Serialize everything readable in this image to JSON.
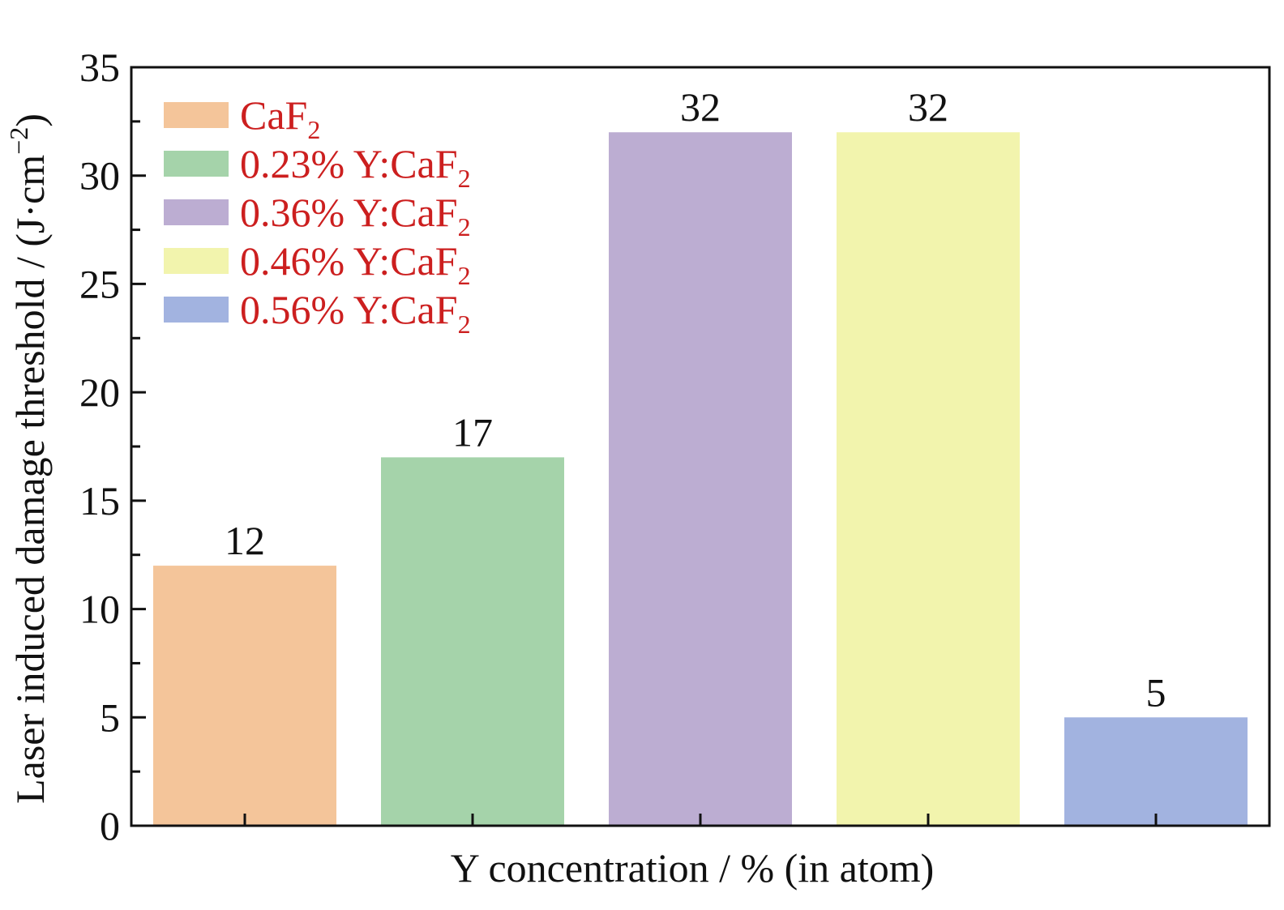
{
  "chart_data": {
    "type": "bar",
    "title": "",
    "xlabel": "Y concentration / % (in atom)",
    "ylabel": "Laser induced damage threshold / (J·cm",
    "ylabel_superscript": "−2",
    "ylabel_suffix": ")",
    "ylim": [
      0,
      35
    ],
    "yticks": [
      0,
      5,
      10,
      15,
      20,
      25,
      30,
      35
    ],
    "yticks_minor_step": 2.5,
    "grid": false,
    "legend_position": "top-left",
    "legend_text_color": "#cc1f1f",
    "categories": [
      "CaF2",
      "0.23% Y:CaF2",
      "0.36% Y:CaF2",
      "0.46% Y:CaF2",
      "0.56% Y:CaF2"
    ],
    "series": [
      {
        "name": "CaF",
        "subscript": "2",
        "value": 12,
        "color": "#f4c59a"
      },
      {
        "name": "0.23% Y:CaF",
        "subscript": "2",
        "value": 17,
        "color": "#a5d3aa"
      },
      {
        "name": "0.36% Y:CaF",
        "subscript": "2",
        "value": 32,
        "color": "#bcadd2"
      },
      {
        "name": "0.46% Y:CaF",
        "subscript": "2",
        "value": 32,
        "color": "#f2f4ad"
      },
      {
        "name": "0.56% Y:CaF",
        "subscript": "2",
        "value": 5,
        "color": "#a2b3e0"
      }
    ]
  }
}
